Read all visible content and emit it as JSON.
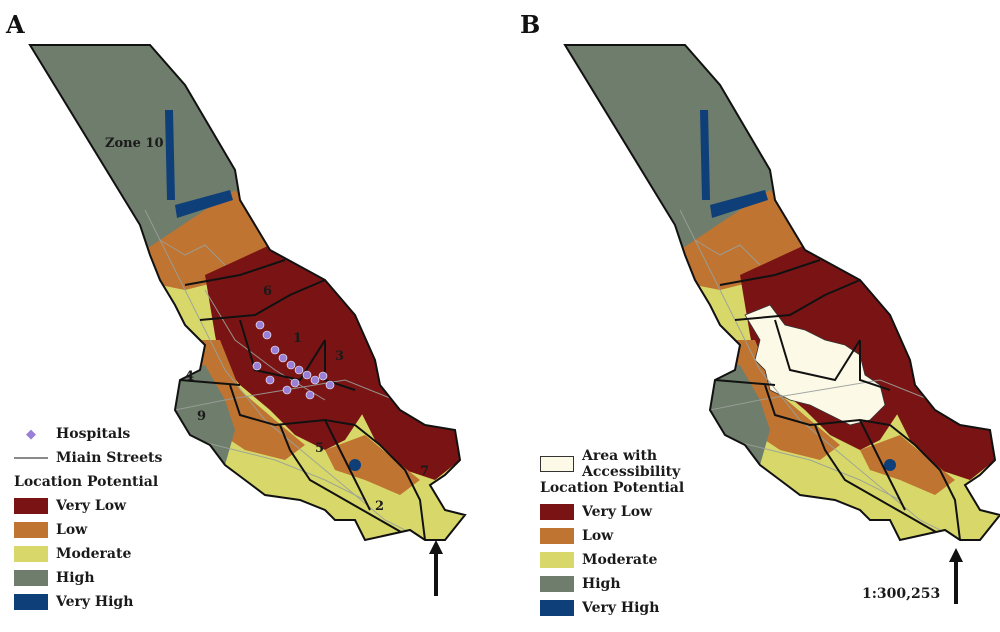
{
  "panels": [
    {
      "id": "A",
      "label": "A",
      "zone_labels": [
        "Zone 10",
        "6",
        "1",
        "3",
        "4",
        "9",
        "5",
        "2",
        "7"
      ],
      "legend": {
        "hospitals": "Hospitals",
        "streets": "Miain Streets",
        "title": "Location Potential",
        "classes": [
          "Very Low",
          "Low",
          "Moderate",
          "High",
          "Very High"
        ]
      }
    },
    {
      "id": "B",
      "label": "B",
      "legend": {
        "accessibility": "Area with Accessibility",
        "title": "Location Potential",
        "classes": [
          "Very Low",
          "Low",
          "Moderate",
          "High",
          "Very High"
        ]
      },
      "scale": "1:300,253"
    }
  ],
  "colors": {
    "very_low": "#7a1414",
    "low": "#c07432",
    "moderate": "#d8d86a",
    "high": "#6f7d6c",
    "very_high": "#0f3f78",
    "accessibility": "#fcf9e6",
    "hospital": "#9a7fd6"
  }
}
